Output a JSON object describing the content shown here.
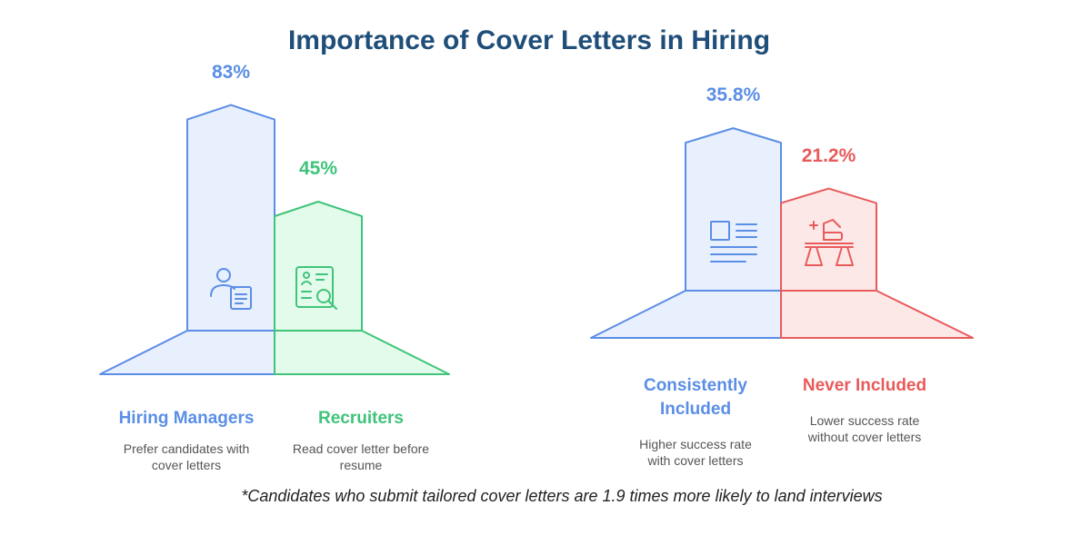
{
  "title": "Importance of Cover Letters in Hiring",
  "footnote": "*Candidates who submit tailored cover letters are 1.9 times more likely to land interviews",
  "colors": {
    "blue": "#5b8ee6",
    "blue_fill": "#e8effd",
    "green": "#3fc47a",
    "green_fill": "#e3fbea",
    "red": "#e85b5b",
    "red_fill": "#fde8e8",
    "title": "#1f4e79"
  },
  "chart_data": [
    {
      "type": "bar",
      "categories": [
        "Hiring Managers",
        "Recruiters"
      ],
      "values": [
        83,
        45
      ],
      "value_labels": [
        "83%",
        "45%"
      ],
      "descriptions": [
        "Prefer candidates with cover letters",
        "Read cover letter before resume"
      ],
      "icons": [
        "person-document-icon",
        "id-card-search-icon"
      ],
      "colors": [
        "#5b8ee6",
        "#3fc47a"
      ]
    },
    {
      "type": "bar",
      "categories": [
        "Consistently Included",
        "Never Included"
      ],
      "values": [
        35.8,
        21.2
      ],
      "value_labels": [
        "35.8%",
        "21.2%"
      ],
      "descriptions": [
        "Higher success rate with cover letters",
        "Lower success rate without cover letters"
      ],
      "icons": [
        "document-icon",
        "desk-lamp-icon"
      ],
      "colors": [
        "#5b8ee6",
        "#e85b5b"
      ]
    }
  ]
}
